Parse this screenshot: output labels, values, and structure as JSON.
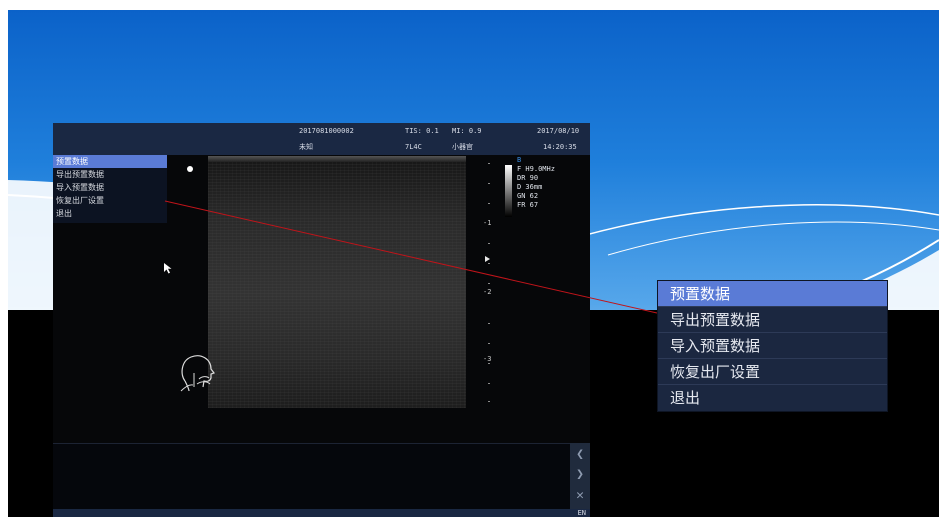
{
  "header": {
    "patient_id": "2017081000002",
    "patient_name": "未知",
    "tis": "TIS: 0.1",
    "mi": "MI: 0.9",
    "probe": "7L4C",
    "preset_name": "小器官",
    "date": "2017/08/10",
    "time": "14:20:35"
  },
  "menu": {
    "items": [
      {
        "label": "预置数据",
        "selected": true
      },
      {
        "label": "导出预置数据",
        "selected": false
      },
      {
        "label": "导入预置数据",
        "selected": false
      },
      {
        "label": "恢复出厂设置",
        "selected": false
      },
      {
        "label": "退出",
        "selected": false
      }
    ]
  },
  "params": {
    "mode": "B",
    "rows": [
      "F  H9.0MHz",
      "DR  90",
      "D   36mm",
      "GN  62",
      "FR  67"
    ]
  },
  "depth_labels": [
    "-1",
    "-2",
    "-3"
  ],
  "side_buttons": {
    "prev_icon": "chevron-left-icon",
    "next_icon": "chevron-right-icon",
    "close_icon": "close-icon"
  },
  "footer": {
    "text": "EN"
  },
  "colors": {
    "menu_selected": "#5a7bd6",
    "menu_bg": "#1b2740",
    "callout_line": "#c0141a",
    "header_bg": "#1a2843"
  }
}
